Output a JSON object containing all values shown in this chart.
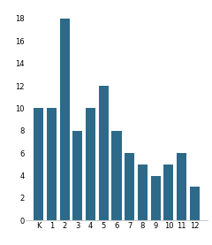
{
  "categories": [
    "K",
    "1",
    "2",
    "3",
    "4",
    "5",
    "6",
    "7",
    "8",
    "9",
    "10",
    "11",
    "12"
  ],
  "values": [
    10,
    10,
    18,
    8,
    10,
    12,
    8,
    6,
    5,
    4,
    5,
    6,
    3
  ],
  "bar_color": "#2d6a8a",
  "ylim": [
    0,
    19
  ],
  "yticks": [
    0,
    2,
    4,
    6,
    8,
    10,
    12,
    14,
    16,
    18
  ],
  "background_color": "#ffffff",
  "tick_fontsize": 6.0,
  "bar_width": 0.75
}
